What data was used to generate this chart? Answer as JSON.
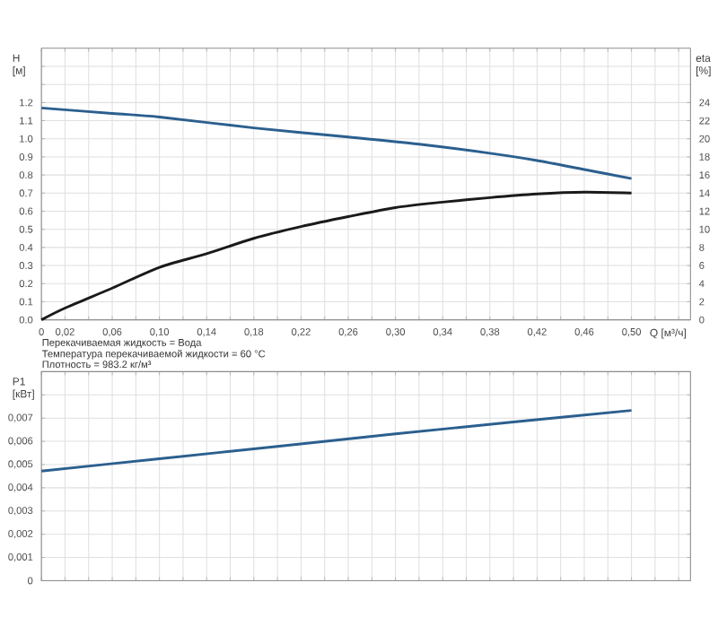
{
  "chart_data": [
    {
      "type": "line",
      "ylabel": "H [м]",
      "y2label": "eta [%]",
      "xlabel": "Q [м³/ч]",
      "annotations": [
        "Перекачиваемая жидкость = Вода",
        "Температура перекачиваемой жидкости = 60 °C",
        "Плотность = 983.2 кг/м³"
      ],
      "xlim": [
        0,
        0.55
      ],
      "xticks": [
        0,
        {
          "value": 0.02,
          "label": "0,02"
        },
        {
          "value": 0.04,
          "label": null
        },
        {
          "value": 0.06,
          "label": "0,06"
        },
        {
          "value": 0.08,
          "label": null
        },
        {
          "value": 0.1,
          "label": "0,10"
        },
        {
          "value": 0.12,
          "label": null
        },
        {
          "value": 0.14,
          "label": "0,14"
        },
        {
          "value": 0.16,
          "label": null
        },
        {
          "value": 0.18,
          "label": "0,18"
        },
        {
          "value": 0.2,
          "label": null
        },
        {
          "value": 0.22,
          "label": "0,22"
        },
        {
          "value": 0.24,
          "label": null
        },
        {
          "value": 0.26,
          "label": "0,26"
        },
        {
          "value": 0.28,
          "label": null
        },
        {
          "value": 0.3,
          "label": "0,30"
        },
        {
          "value": 0.32,
          "label": null
        },
        {
          "value": 0.34,
          "label": "0,34"
        },
        {
          "value": 0.36,
          "label": null
        },
        {
          "value": 0.38,
          "label": "0,38"
        },
        {
          "value": 0.4,
          "label": null
        },
        {
          "value": 0.42,
          "label": "0,42"
        },
        {
          "value": 0.44,
          "label": null
        },
        {
          "value": 0.46,
          "label": "0,46"
        },
        {
          "value": 0.48,
          "label": null
        },
        {
          "value": 0.5,
          "label": "0,50"
        },
        {
          "value": 0.52,
          "label": null
        },
        {
          "value": 0.54,
          "label": null
        }
      ],
      "ylim": [
        0,
        1.5
      ],
      "yticks": [
        {
          "value": 0,
          "label": "0.0"
        },
        0.1,
        0.2,
        0.3,
        0.4,
        0.5,
        0.6,
        0.7,
        0.8,
        0.9,
        {
          "value": 1,
          "label": "1.0"
        },
        1.1,
        1.2,
        {
          "value": 1.3,
          "label": null
        },
        {
          "value": 1.4,
          "label": null
        }
      ],
      "y2lim": [
        0,
        30
      ],
      "y2ticks": [
        0,
        2,
        4,
        6,
        8,
        10,
        12,
        14,
        16,
        18,
        20,
        22,
        24
      ],
      "grid": true,
      "marker": "none",
      "series": [
        {
          "color": "#2b5f8e",
          "x": [
            0,
            0.06,
            0.1,
            0.18,
            0.26,
            0.32,
            0.38,
            0.42,
            0.46,
            0.5
          ],
          "values": [
            1.17,
            1.14,
            1.12,
            1.06,
            1.01,
            0.97,
            0.92,
            0.88,
            0.83,
            0.78
          ]
        },
        {
          "color": "#1a1a1a",
          "axis": "y2",
          "x": [
            0,
            0.02,
            0.06,
            0.1,
            0.14,
            0.18,
            0.22,
            0.26,
            0.3,
            0.34,
            0.38,
            0.42,
            0.46,
            0.5
          ],
          "values": [
            0,
            1.3,
            3.5,
            5.8,
            7.3,
            9.0,
            10.3,
            11.4,
            12.4,
            13.0,
            13.5,
            13.9,
            14.1,
            14.0
          ]
        }
      ]
    },
    {
      "type": "line",
      "ylabel": "P1 [кВт]",
      "tick_labels": "y",
      "xlim": [
        0,
        0.55
      ],
      "xticks": [
        0,
        0.02,
        0.04,
        0.06,
        0.08,
        0.1,
        0.12,
        0.14,
        0.16,
        0.18,
        0.2,
        0.22,
        0.24,
        0.26,
        0.28,
        0.3,
        0.32,
        0.34,
        0.36,
        0.38,
        0.4,
        0.42,
        0.44,
        0.46,
        0.48,
        0.5,
        0.52,
        0.54
      ],
      "ylim": [
        0,
        0.009
      ],
      "yticks": [
        0,
        {
          "value": 0.001,
          "label": "0,001"
        },
        {
          "value": 0.002,
          "label": "0,002"
        },
        {
          "value": 0.003,
          "label": "0,003"
        },
        {
          "value": 0.004,
          "label": "0,004"
        },
        {
          "value": 0.005,
          "label": "0,005"
        },
        {
          "value": 0.006,
          "label": "0,006"
        },
        {
          "value": 0.007,
          "label": "0,007"
        },
        {
          "value": 0.008,
          "label": null
        }
      ],
      "grid": true,
      "marker": "none",
      "series": [
        {
          "color": "#2b5f8e",
          "x": [
            0,
            0.1,
            0.2,
            0.3,
            0.4,
            0.5
          ],
          "values": [
            0.00472,
            0.00525,
            0.00578,
            0.00632,
            0.00683,
            0.00733
          ]
        }
      ]
    }
  ]
}
